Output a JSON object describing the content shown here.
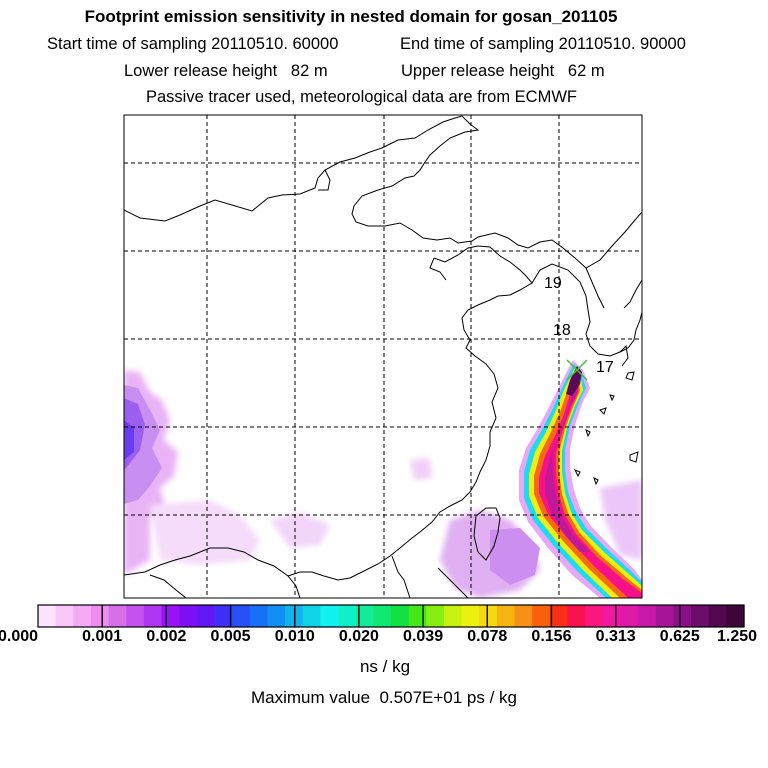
{
  "header": {
    "title": "Footprint emission sensitivity in nested domain for gosan_201105",
    "start_label": "Start time of sampling 20110510. 60000",
    "end_label": "End time of sampling 20110510. 90000",
    "lower_release": "Lower release height   82 m",
    "upper_release": "Upper release height   62 m",
    "tracer_note": "Passive tracer used, meteorological data are from ECMWF"
  },
  "map": {
    "trajectory_labels": [
      "19",
      "18",
      "17"
    ],
    "release_marker_icon": "cross-marker-icon"
  },
  "colorbar": {
    "tick_labels": [
      "0.000",
      "0.001",
      "0.002",
      "0.005",
      "0.010",
      "0.020",
      "0.039",
      "0.078",
      "0.156",
      "0.313",
      "0.625",
      "1.250"
    ],
    "colors": [
      "#fde4fd",
      "#f9c8f9",
      "#f5aaf5",
      "#ef8cef",
      "#d86ee8",
      "#c552ef",
      "#b034f3",
      "#9a10f7",
      "#7c10f4",
      "#6018f5",
      "#4030f7",
      "#2850f8",
      "#1770f7",
      "#1090f2",
      "#10b4ea",
      "#10d4e6",
      "#10f2f0",
      "#10f0c8",
      "#10ec9a",
      "#10e870",
      "#10e040",
      "#44e818",
      "#88ee10",
      "#c8f010",
      "#ecf010",
      "#f4d810",
      "#f6b410",
      "#f89018",
      "#f86010",
      "#f83018",
      "#f81050",
      "#f81880",
      "#f018a0",
      "#de18a8",
      "#c818a8",
      "#a81498",
      "#8a1088",
      "#6c0c6c",
      "#52084e",
      "#3c0638"
    ],
    "unit": "ns / kg",
    "max_value": "Maximum value  0.507E+01 ps / kg"
  }
}
